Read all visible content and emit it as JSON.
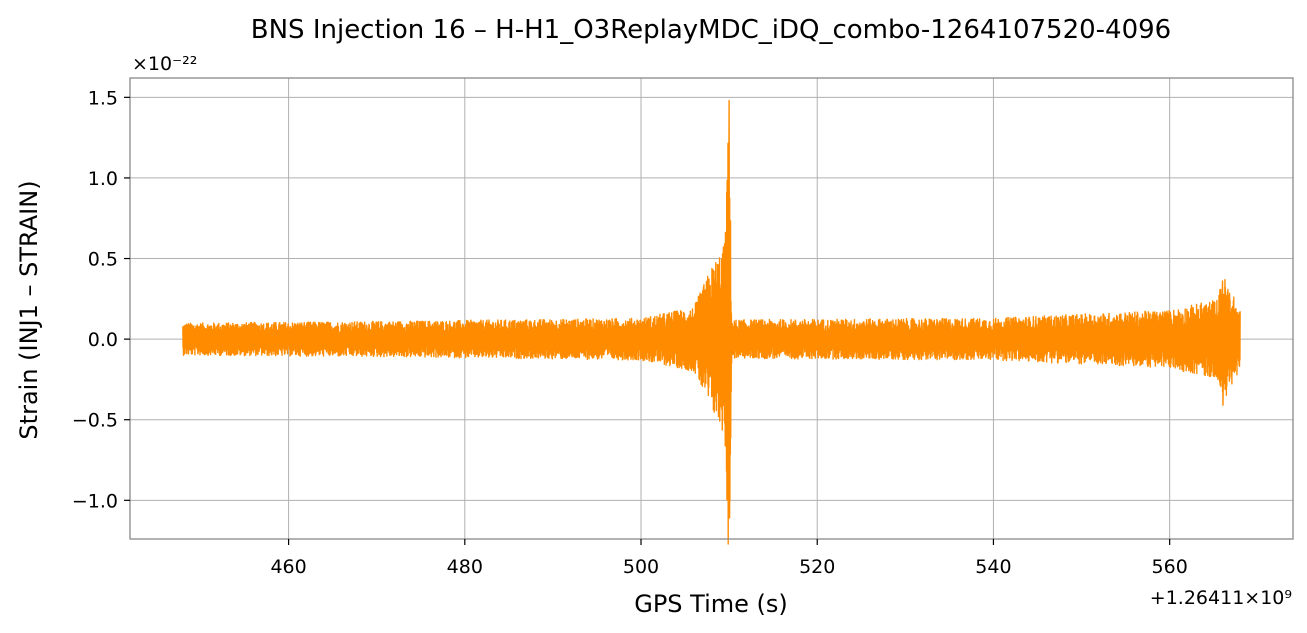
{
  "chart_data": {
    "type": "line",
    "title": "BNS Injection 16 – H-H1_O3ReplayMDC_iDQ_combo-1264107520-4096",
    "xlabel": "GPS Time (s)",
    "ylabel": "Strain (INJ1 – STRAIN)",
    "x_offset_text": "+1.26411×10⁹",
    "y_scale_text": "×10⁻²²",
    "xlim": [
      442,
      574
    ],
    "ylim": [
      -1.24,
      1.62
    ],
    "x_ticks": [
      460,
      480,
      500,
      520,
      540,
      560
    ],
    "x_tick_labels": [
      "460",
      "480",
      "500",
      "520",
      "540",
      "560"
    ],
    "y_ticks": [
      -1.0,
      -0.5,
      0.0,
      0.5,
      1.0,
      1.5
    ],
    "y_tick_labels": [
      "−1.0",
      "−0.5",
      "0.0",
      "0.5",
      "1.0",
      "1.5"
    ],
    "grid": true,
    "series": [
      {
        "color": "#ff8c00",
        "x_range": [
          448,
          568
        ],
        "noise_amplitude": 0.13,
        "envelope": [
          {
            "x": 448,
            "amp": 0.1
          },
          {
            "x": 470,
            "amp": 0.11
          },
          {
            "x": 500,
            "amp": 0.13
          },
          {
            "x": 506,
            "amp": 0.2
          },
          {
            "x": 508,
            "amp": 0.45
          },
          {
            "x": 509.5,
            "amp": 0.6
          },
          {
            "x": 510,
            "amp": 1.48
          },
          {
            "x": 510.3,
            "amp": 0.12
          },
          {
            "x": 540,
            "amp": 0.13
          },
          {
            "x": 560,
            "amp": 0.18
          },
          {
            "x": 565.5,
            "amp": 0.25
          },
          {
            "x": 566,
            "amp": 0.41
          },
          {
            "x": 568,
            "amp": 0.18
          }
        ],
        "peak": {
          "x": 510,
          "max": 1.48,
          "min": -1.11
        },
        "secondary_peak": {
          "x": 566,
          "max": 0.36,
          "min": -0.41
        }
      }
    ],
    "line_color": "#ff8c00"
  }
}
